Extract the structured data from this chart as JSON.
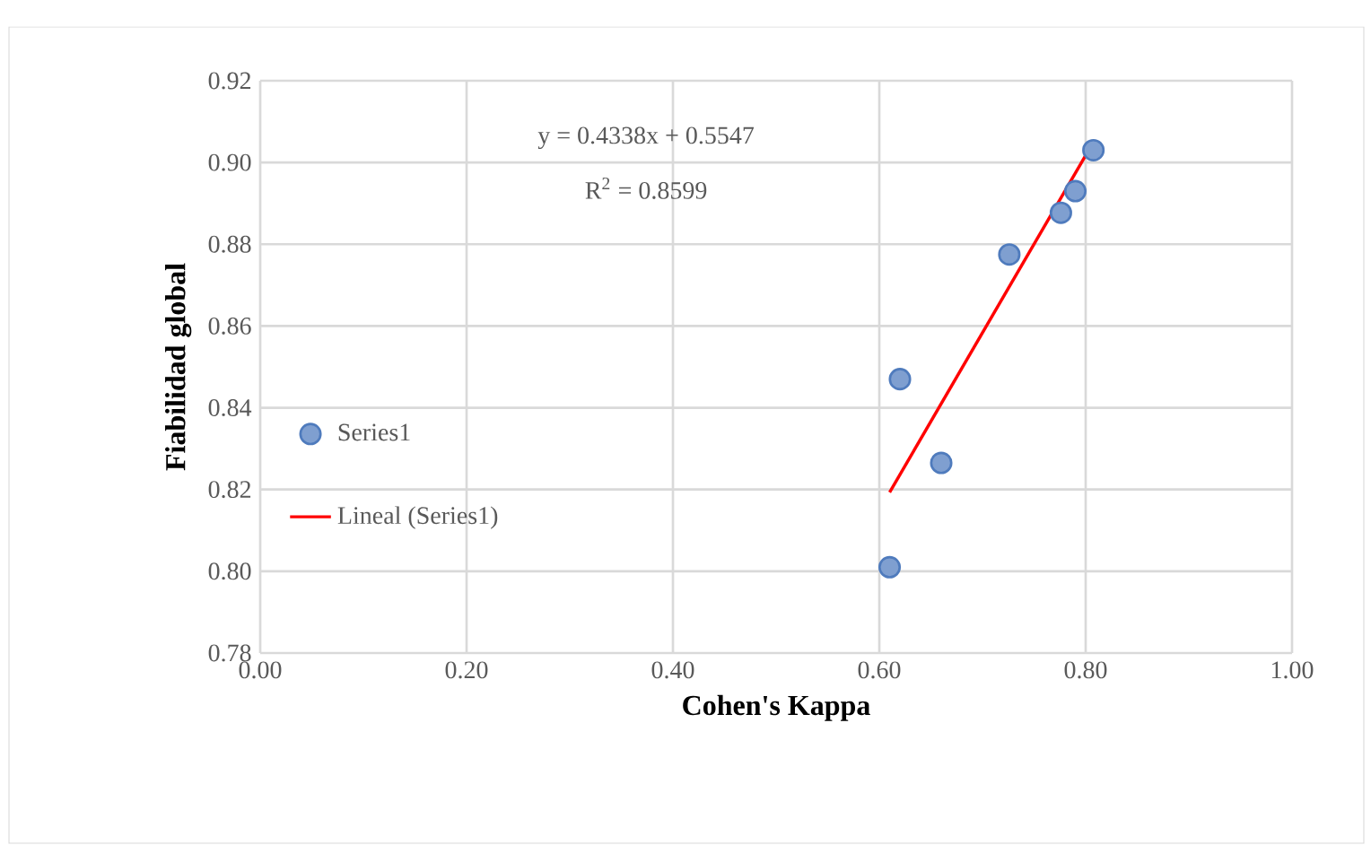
{
  "chart_data": {
    "type": "scatter",
    "xlabel": "Cohen's Kappa",
    "ylabel": "Fiabilidad global",
    "xlim": [
      0,
      1
    ],
    "xticks": [
      {
        "value": 0,
        "label": "0.00"
      },
      {
        "value": 0.2,
        "label": "0.20"
      },
      {
        "value": 0.4,
        "label": "0.40"
      },
      {
        "value": 0.6,
        "label": "0.60"
      },
      {
        "value": 0.8,
        "label": "0.80"
      },
      {
        "value": 1,
        "label": "1.00"
      }
    ],
    "ylim": [
      0.78,
      0.92
    ],
    "yticks": [
      {
        "value": 0.78,
        "label": "0.78"
      },
      {
        "value": 0.8,
        "label": "0.80"
      },
      {
        "value": 0.82,
        "label": "0.82"
      },
      {
        "value": 0.84,
        "label": "0.84"
      },
      {
        "value": 0.86,
        "label": "0.86"
      },
      {
        "value": 0.88,
        "label": "0.88"
      },
      {
        "value": 0.9,
        "label": "0.90"
      },
      {
        "value": 0.92,
        "label": "0.92"
      }
    ],
    "grid": true,
    "legend": "left",
    "annotations": [
      "y = 0.4338x + 0.5547",
      "R$^{2}$ = 0.8599"
    ],
    "series": [
      {
        "name": "Series1",
        "type": "scatter",
        "color": "#7f9fd0",
        "x": [
          0.61,
          0.62,
          0.66,
          0.726,
          0.776,
          0.79,
          0.8075
        ],
        "values": [
          0.801,
          0.847,
          0.8265,
          0.8775,
          0.8877,
          0.893,
          0.903
        ]
      },
      {
        "name": "Lineal (Series1)",
        "type": "line",
        "color": "#ff0000",
        "x": [
          0.61,
          0.8075
        ],
        "values": [
          0.8193,
          0.905
        ]
      }
    ]
  }
}
